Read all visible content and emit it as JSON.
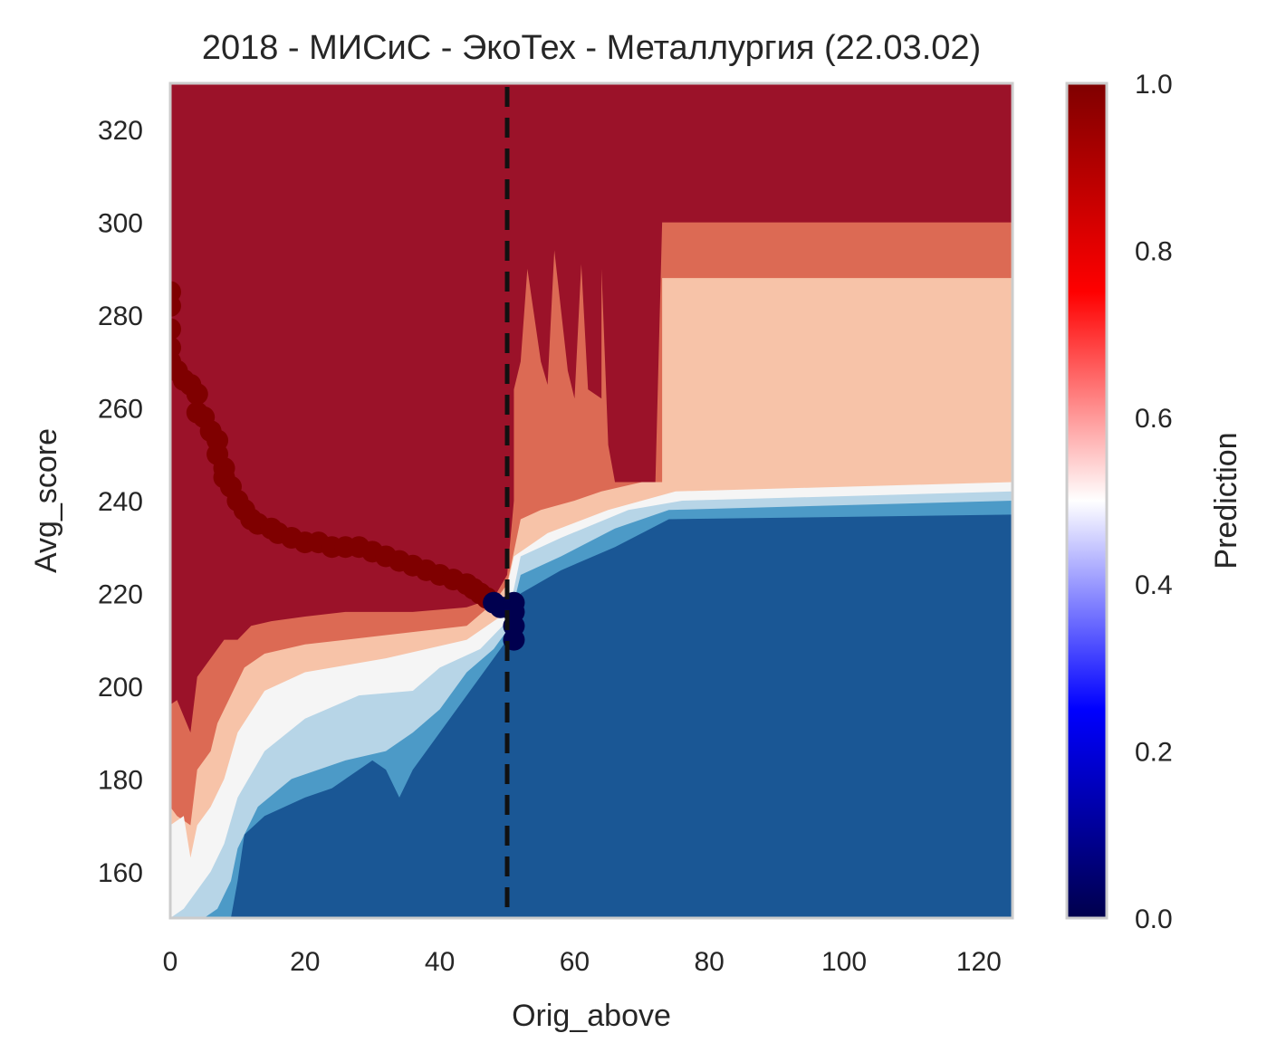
{
  "chart_data": {
    "type": "heatmap",
    "title": "2018 - МИСиС - ЭкоТех - Металлургия (22.03.02)",
    "xlabel": "Orig_above",
    "ylabel": "Avg_score",
    "xlim": [
      0,
      125
    ],
    "ylim": [
      150,
      330
    ],
    "x_ticks": [
      "0",
      "20",
      "40",
      "60",
      "80",
      "100",
      "120"
    ],
    "y_ticks": [
      "160",
      "180",
      "200",
      "220",
      "240",
      "260",
      "280",
      "300",
      "320"
    ],
    "grid": false,
    "threshold_line": {
      "x": 50,
      "style": "dashed",
      "color": "#111111"
    },
    "colorbar": {
      "label": "Prediction",
      "range": [
        0,
        1
      ],
      "ticks": [
        "0.0",
        "0.2",
        "0.4",
        "0.6",
        "0.8",
        "1.0"
      ],
      "colormap": "seismic"
    },
    "contour_colors": {
      "level_0.9_1.0": "#9b1229",
      "level_0.8_0.9": "#dc6a54",
      "level_0.6_0.8": "#f7c3a8",
      "level_0.5_0.6": "#f5f5f5",
      "level_0.4_0.5": "#b7d5e7",
      "level_0.2_0.4": "#4c9ac7",
      "level_0.0_0.2": "#1a5795"
    },
    "contour_boundaries": [
      {
        "level": "upper_red",
        "points": [
          [
            0,
            196
          ],
          [
            1,
            197
          ],
          [
            3,
            190
          ],
          [
            4,
            202
          ],
          [
            5,
            204
          ],
          [
            8,
            210
          ],
          [
            10,
            210
          ],
          [
            12,
            213
          ],
          [
            15,
            214
          ],
          [
            20,
            215
          ],
          [
            26,
            216
          ],
          [
            36,
            216
          ],
          [
            44,
            217
          ],
          [
            48,
            219
          ],
          [
            50,
            224
          ],
          [
            51,
            240
          ],
          [
            51,
            264
          ],
          [
            52,
            270
          ],
          [
            53,
            290
          ],
          [
            55,
            270
          ],
          [
            56,
            265
          ],
          [
            57,
            294
          ],
          [
            59,
            268
          ],
          [
            60,
            262
          ],
          [
            61,
            291
          ],
          [
            62,
            264
          ],
          [
            64,
            262
          ],
          [
            64,
            290
          ],
          [
            65,
            252
          ],
          [
            66,
            244
          ],
          [
            72,
            244
          ],
          [
            73,
            300
          ],
          [
            125,
            300
          ]
        ]
      },
      {
        "level": "orange",
        "points": [
          [
            0,
            174
          ],
          [
            1,
            172
          ],
          [
            3,
            170
          ],
          [
            4,
            182
          ],
          [
            6,
            186
          ],
          [
            7,
            192
          ],
          [
            9,
            198
          ],
          [
            11,
            204
          ],
          [
            14,
            207
          ],
          [
            20,
            209
          ],
          [
            32,
            211
          ],
          [
            44,
            213
          ],
          [
            48,
            218
          ],
          [
            50,
            222
          ],
          [
            52,
            236
          ],
          [
            55,
            238
          ],
          [
            60,
            240
          ],
          [
            64,
            242
          ],
          [
            70,
            244
          ],
          [
            73,
            244
          ],
          [
            73,
            288
          ],
          [
            125,
            288
          ]
        ]
      },
      {
        "level": "light_orange",
        "points": [
          [
            0,
            170
          ],
          [
            2,
            172
          ],
          [
            3,
            163
          ],
          [
            4,
            170
          ],
          [
            6,
            174
          ],
          [
            8,
            180
          ],
          [
            10,
            190
          ],
          [
            14,
            199
          ],
          [
            20,
            203
          ],
          [
            32,
            206
          ],
          [
            44,
            210
          ],
          [
            49,
            215
          ],
          [
            51,
            228
          ],
          [
            56,
            233
          ],
          [
            65,
            238
          ],
          [
            75,
            242
          ],
          [
            125,
            244
          ]
        ]
      },
      {
        "level": "white",
        "points": [
          [
            0,
            150
          ],
          [
            2,
            152
          ],
          [
            4,
            156
          ],
          [
            6,
            160
          ],
          [
            8,
            166
          ],
          [
            10,
            176
          ],
          [
            14,
            186
          ],
          [
            20,
            193
          ],
          [
            28,
            198
          ],
          [
            36,
            199
          ],
          [
            40,
            204
          ],
          [
            46,
            208
          ],
          [
            50,
            214
          ],
          [
            52,
            228
          ],
          [
            58,
            232
          ],
          [
            68,
            238
          ],
          [
            76,
            240
          ],
          [
            125,
            242
          ]
        ]
      },
      {
        "level": "light_blue",
        "points": [
          [
            5,
            150
          ],
          [
            7,
            152
          ],
          [
            9,
            158
          ],
          [
            10,
            165
          ],
          [
            13,
            174
          ],
          [
            18,
            180
          ],
          [
            26,
            184
          ],
          [
            32,
            186
          ],
          [
            36,
            190
          ],
          [
            40,
            195
          ],
          [
            44,
            203
          ],
          [
            48,
            208
          ],
          [
            50,
            212
          ],
          [
            52,
            224
          ],
          [
            58,
            228
          ],
          [
            66,
            234
          ],
          [
            74,
            238
          ],
          [
            125,
            240
          ]
        ]
      },
      {
        "level": "mid_blue",
        "points": [
          [
            9,
            150
          ],
          [
            10,
            158
          ],
          [
            11,
            168
          ],
          [
            14,
            172
          ],
          [
            20,
            176
          ],
          [
            24,
            178
          ],
          [
            28,
            182
          ],
          [
            30,
            184
          ],
          [
            32,
            182
          ],
          [
            34,
            176
          ],
          [
            36,
            182
          ],
          [
            40,
            190
          ],
          [
            44,
            198
          ],
          [
            48,
            206
          ],
          [
            50,
            210
          ],
          [
            52,
            220
          ],
          [
            58,
            225
          ],
          [
            66,
            230
          ],
          [
            74,
            236
          ],
          [
            125,
            237
          ]
        ]
      }
    ],
    "series": [
      {
        "name": "",
        "color": "#7f0000",
        "points": [
          [
            0,
            285
          ],
          [
            0,
            282
          ],
          [
            0,
            277
          ],
          [
            0,
            273
          ],
          [
            0,
            270
          ],
          [
            1,
            268
          ],
          [
            2,
            266
          ],
          [
            3,
            265
          ],
          [
            4,
            263
          ],
          [
            4,
            259
          ],
          [
            5,
            258
          ],
          [
            6,
            255
          ],
          [
            7,
            253
          ],
          [
            7,
            250
          ],
          [
            8,
            247
          ],
          [
            8,
            245
          ],
          [
            9,
            243
          ],
          [
            10,
            240
          ],
          [
            11,
            238
          ],
          [
            12,
            236
          ],
          [
            13,
            235
          ],
          [
            15,
            234
          ],
          [
            16,
            233
          ],
          [
            18,
            232
          ],
          [
            20,
            231
          ],
          [
            22,
            231
          ],
          [
            24,
            230
          ],
          [
            26,
            230
          ],
          [
            28,
            230
          ],
          [
            30,
            229
          ],
          [
            32,
            228
          ],
          [
            34,
            227
          ],
          [
            36,
            226
          ],
          [
            38,
            225
          ],
          [
            40,
            224
          ],
          [
            42,
            223
          ],
          [
            44,
            222
          ],
          [
            45,
            221
          ],
          [
            46,
            220
          ],
          [
            47,
            219
          ]
        ]
      },
      {
        "name": "",
        "color": "#00004f",
        "points": [
          [
            48,
            218
          ],
          [
            49,
            217
          ],
          [
            50,
            217
          ],
          [
            51,
            218
          ],
          [
            51,
            216
          ],
          [
            51,
            213
          ],
          [
            51,
            210
          ]
        ]
      }
    ]
  }
}
